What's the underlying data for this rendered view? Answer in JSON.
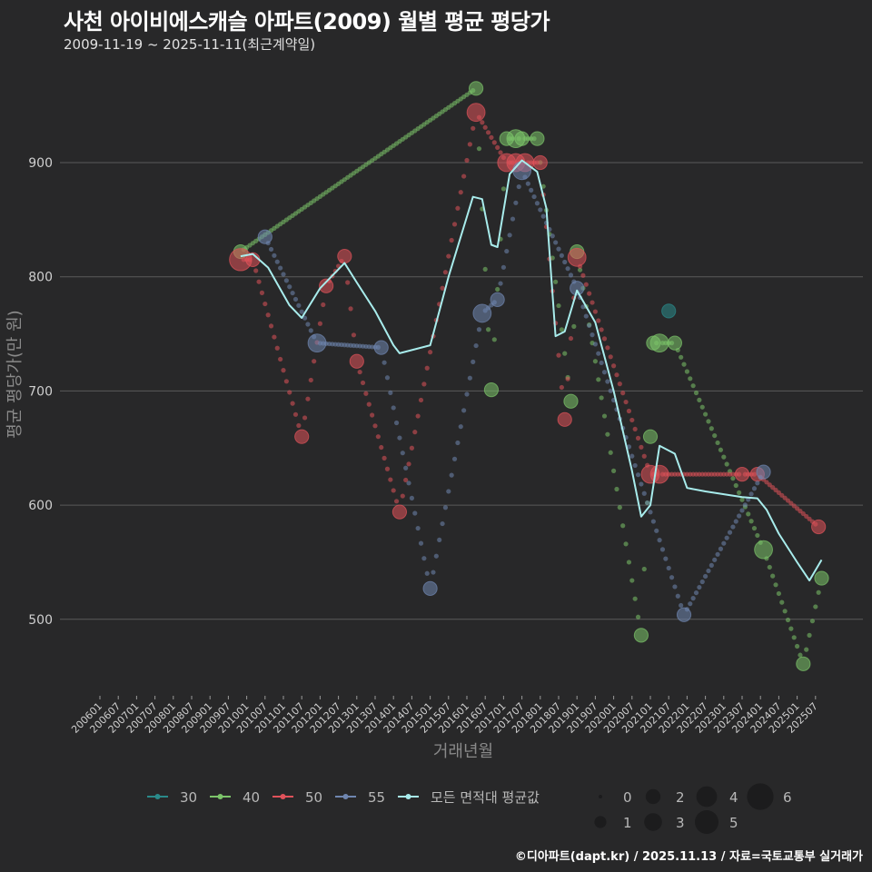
{
  "header": {
    "title": "사천 아이비에스캐슬 아파트(2009) 월별 평균 평당가",
    "subtitle": "2009-11-19 ~ 2025-11-11(최근계약일)"
  },
  "footer": {
    "credit": "©디아파트(dapt.kr) / 2025.11.13 / 자료=국토교통부 실거래가"
  },
  "colors": {
    "background": "#282829",
    "grid": "#5a5a5a",
    "s30": "#2a8a8a",
    "s40": "#7cc46a",
    "s50": "#e0525a",
    "s55": "#6f86b0",
    "avg": "#a8ecec"
  },
  "chart_data": {
    "type": "scatter",
    "title": "사천 아이비에스캐슬 아파트(2009) 월별 평균 평당가",
    "subtitle": "2009-11-19 ~ 2025-11-11(최근계약일)",
    "xlabel": "거래년월",
    "ylabel": "평균 평당가(만 원)",
    "ylim": [
      440,
      975
    ],
    "yticks": [
      500,
      600,
      700,
      800,
      900
    ],
    "grid": true,
    "xticks": [
      "200601",
      "200607",
      "200701",
      "200707",
      "200801",
      "200807",
      "200901",
      "200907",
      "201001",
      "201007",
      "201101",
      "201107",
      "201201",
      "201207",
      "201301",
      "201307",
      "201401",
      "201407",
      "201501",
      "201507",
      "201601",
      "201607",
      "201701",
      "201707",
      "201801",
      "201807",
      "201901",
      "201907",
      "202001",
      "202007",
      "202101",
      "202107",
      "202201",
      "202207",
      "202301",
      "202307",
      "202401",
      "202407",
      "202501",
      "202507"
    ],
    "legend": {
      "series": [
        "30",
        "40",
        "50",
        "55",
        "모든 면적대 평균값"
      ],
      "size_title": "",
      "sizes": [
        "0",
        "1",
        "2",
        "3",
        "4",
        "5",
        "6"
      ],
      "position": "bottom"
    },
    "series": [
      {
        "name": "30",
        "points": [
          [
            "2021-07",
            770,
            2
          ]
        ]
      },
      {
        "name": "40",
        "points": [
          [
            "2009-11",
            822,
            2
          ],
          [
            "2016-04",
            965,
            2
          ],
          [
            "2016-09",
            701,
            2
          ],
          [
            "2017-02",
            921,
            2
          ],
          [
            "2017-05",
            921,
            3
          ],
          [
            "2017-07",
            921,
            2
          ],
          [
            "2017-12",
            921,
            2
          ],
          [
            "2018-11",
            691,
            2
          ],
          [
            "2019-01",
            822,
            2
          ],
          [
            "2020-10",
            486,
            2
          ],
          [
            "2021-01",
            660,
            2
          ],
          [
            "2021-02",
            742,
            2
          ],
          [
            "2021-04",
            742,
            3
          ],
          [
            "2021-09",
            742,
            2
          ],
          [
            "2024-02",
            561,
            3
          ],
          [
            "2025-03",
            461,
            2
          ],
          [
            "2025-09",
            536,
            2
          ]
        ]
      },
      {
        "name": "50",
        "points": [
          [
            "2009-11",
            815,
            4
          ],
          [
            "2010-03",
            815,
            2
          ],
          [
            "2011-07",
            660,
            2
          ],
          [
            "2012-03",
            792,
            2
          ],
          [
            "2012-09",
            818,
            2
          ],
          [
            "2013-01",
            726,
            2
          ],
          [
            "2014-03",
            594,
            2
          ],
          [
            "2016-04",
            944,
            3
          ],
          [
            "2017-02",
            900,
            3
          ],
          [
            "2017-05",
            900,
            3
          ],
          [
            "2017-08",
            900,
            3
          ],
          [
            "2018-01",
            900,
            2
          ],
          [
            "2018-09",
            675,
            2
          ],
          [
            "2019-01",
            817,
            3
          ],
          [
            "2021-01",
            627,
            3
          ],
          [
            "2021-04",
            627,
            3
          ],
          [
            "2023-07",
            627,
            2
          ],
          [
            "2023-12",
            627,
            2
          ],
          [
            "2025-08",
            581,
            2
          ]
        ]
      },
      {
        "name": "55",
        "points": [
          [
            "2010-07",
            835,
            2
          ],
          [
            "2011-12",
            742,
            3
          ],
          [
            "2013-09",
            738,
            2
          ],
          [
            "2015-01",
            527,
            2
          ],
          [
            "2016-06",
            768,
            3
          ],
          [
            "2016-11",
            780,
            2
          ],
          [
            "2017-07",
            893,
            3
          ],
          [
            "2019-01",
            790,
            2
          ],
          [
            "2021-12",
            504,
            2
          ],
          [
            "2024-02",
            629,
            2
          ]
        ]
      },
      {
        "name": "모든 면적대 평균값",
        "line": [
          [
            "2009-11",
            818
          ],
          [
            "2010-03",
            820
          ],
          [
            "2010-08",
            808
          ],
          [
            "2011-03",
            775
          ],
          [
            "2011-07",
            764
          ],
          [
            "2012-01",
            790
          ],
          [
            "2012-09",
            812
          ],
          [
            "2013-01",
            795
          ],
          [
            "2013-07",
            770
          ],
          [
            "2014-01",
            740
          ],
          [
            "2014-03",
            733
          ],
          [
            "2015-01",
            740
          ],
          [
            "2015-07",
            800
          ],
          [
            "2016-03",
            870
          ],
          [
            "2016-06",
            868
          ],
          [
            "2016-09",
            828
          ],
          [
            "2016-11",
            826
          ],
          [
            "2017-03",
            890
          ],
          [
            "2017-07",
            902
          ],
          [
            "2017-12",
            892
          ],
          [
            "2018-03",
            860
          ],
          [
            "2018-06",
            748
          ],
          [
            "2018-09",
            752
          ],
          [
            "2019-01",
            788
          ],
          [
            "2019-07",
            760
          ],
          [
            "2020-01",
            700
          ],
          [
            "2020-07",
            630
          ],
          [
            "2020-10",
            590
          ],
          [
            "2021-01",
            600
          ],
          [
            "2021-04",
            652
          ],
          [
            "2021-09",
            645
          ],
          [
            "2022-01",
            615
          ],
          [
            "2022-07",
            612
          ],
          [
            "2023-07",
            607
          ],
          [
            "2023-12",
            606
          ],
          [
            "2024-03",
            596
          ],
          [
            "2024-07",
            575
          ],
          [
            "2025-01",
            550
          ],
          [
            "2025-05",
            534
          ],
          [
            "2025-09",
            552
          ]
        ]
      }
    ]
  }
}
